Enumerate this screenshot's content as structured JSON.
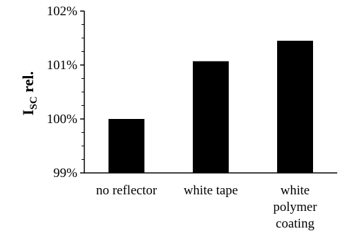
{
  "chart_data": {
    "type": "bar",
    "categories": [
      [
        "no reflector"
      ],
      [
        "white tape"
      ],
      [
        "white",
        "polymer",
        "coating"
      ]
    ],
    "values": [
      1.0,
      1.0107,
      1.0145
    ],
    "ylim": [
      0.99,
      1.02
    ],
    "yticks": [
      0.99,
      1.0,
      1.01,
      1.02
    ],
    "ytick_labels": [
      "99%",
      "100%",
      "101%",
      "102%"
    ],
    "ylabel": {
      "main": "I",
      "sub": "SC",
      "rest": " rel."
    },
    "xlabel": "",
    "bar_color": "#000000",
    "grid": false,
    "legend": false
  }
}
